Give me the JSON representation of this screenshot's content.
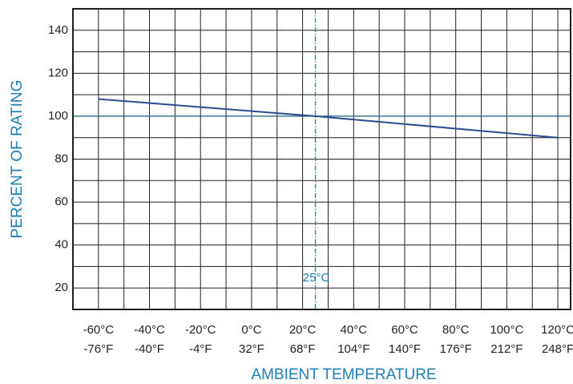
{
  "chart_data": {
    "type": "line",
    "title": "",
    "xlabel": "AMBIENT  TEMPERATURE",
    "ylabel": "PERCENT OF RATING",
    "x_unit": "°C",
    "xlim": [
      -70,
      125
    ],
    "ylim": [
      10,
      150
    ],
    "y_ticks": [
      20,
      40,
      60,
      80,
      100,
      120,
      140
    ],
    "x_ticks_c": [
      -60,
      -40,
      -20,
      0,
      20,
      40,
      60,
      80,
      100,
      120
    ],
    "x_tick_labels_c": [
      "-60°C",
      "-40°C",
      "-20°C",
      "0°C",
      "20°C",
      "40°C",
      "60°C",
      "80°C",
      "100°C",
      "120°C"
    ],
    "x_tick_labels_f": [
      "-76°F",
      "-40°F",
      "-4°F",
      "32°F",
      "68°F",
      "104°F",
      "140°F",
      "176°F",
      "212°F",
      "248°F"
    ],
    "grid": true,
    "grid_y_step": 10,
    "grid_x_step": 10,
    "series": [
      {
        "x": [
          -60,
          25,
          120
        ],
        "y": [
          108,
          100,
          90
        ],
        "color": "#2e4b8f"
      }
    ],
    "reference_lines": {
      "x": 25,
      "y": 100,
      "color": "#1e7fb4"
    },
    "annotation": {
      "text": "25°C",
      "x": 25,
      "y": 25
    },
    "colors": {
      "grid": "#231f20",
      "accent": "#1e7fb4",
      "series": "#2e4b8f"
    }
  }
}
